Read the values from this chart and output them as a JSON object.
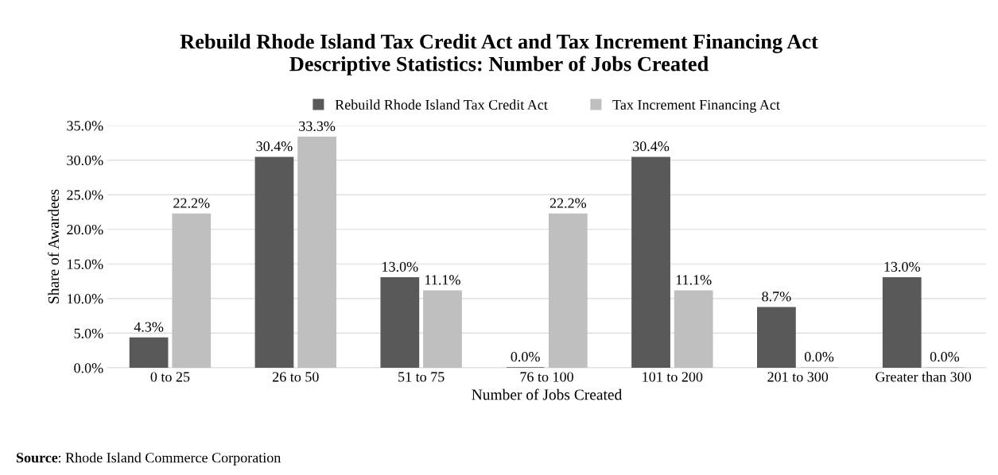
{
  "chart_data": {
    "type": "bar",
    "title": "Rebuild Rhode Island Tax Credit Act and Tax Increment Financing Act\nDescriptive Statistics: Number of Jobs Created",
    "xlabel": "Number of Jobs Created",
    "ylabel": "Share of Awardees",
    "categories": [
      "0 to 25",
      "26 to 50",
      "51 to 75",
      "76 to 100",
      "101 to 200",
      "201 to 300",
      "Greater than 300"
    ],
    "series": [
      {
        "name": "Rebuild Rhode Island Tax Credit Act",
        "color": "#595959",
        "values": [
          4.3,
          30.4,
          13.0,
          0.0,
          30.4,
          8.7,
          13.0
        ],
        "value_labels": [
          "4.3%",
          "30.4%",
          "13.0%",
          "0.0%",
          "30.4%",
          "8.7%",
          "13.0%"
        ]
      },
      {
        "name": "Tax Increment Financing Act",
        "color": "#bfbfbf",
        "values": [
          22.2,
          33.3,
          11.1,
          22.2,
          11.1,
          0.0,
          0.0
        ],
        "value_labels": [
          "22.2%",
          "33.3%",
          "11.1%",
          "22.2%",
          "11.1%",
          "0.0%",
          "0.0%"
        ]
      }
    ],
    "ylim": [
      0,
      35
    ],
    "yticks": [
      {
        "value": 0,
        "label": "0.0%"
      },
      {
        "value": 5,
        "label": "5.0%"
      },
      {
        "value": 10,
        "label": "10.0%"
      },
      {
        "value": 15,
        "label": "15.0%"
      },
      {
        "value": 20,
        "label": "20.0%"
      },
      {
        "value": 25,
        "label": "25.0%"
      },
      {
        "value": 30,
        "label": "30.0%"
      },
      {
        "value": 35,
        "label": "35.0%"
      }
    ],
    "grid": "y",
    "legend": "top",
    "annotations": [
      "Source: Rhode Island Commerce Corporation"
    ]
  }
}
